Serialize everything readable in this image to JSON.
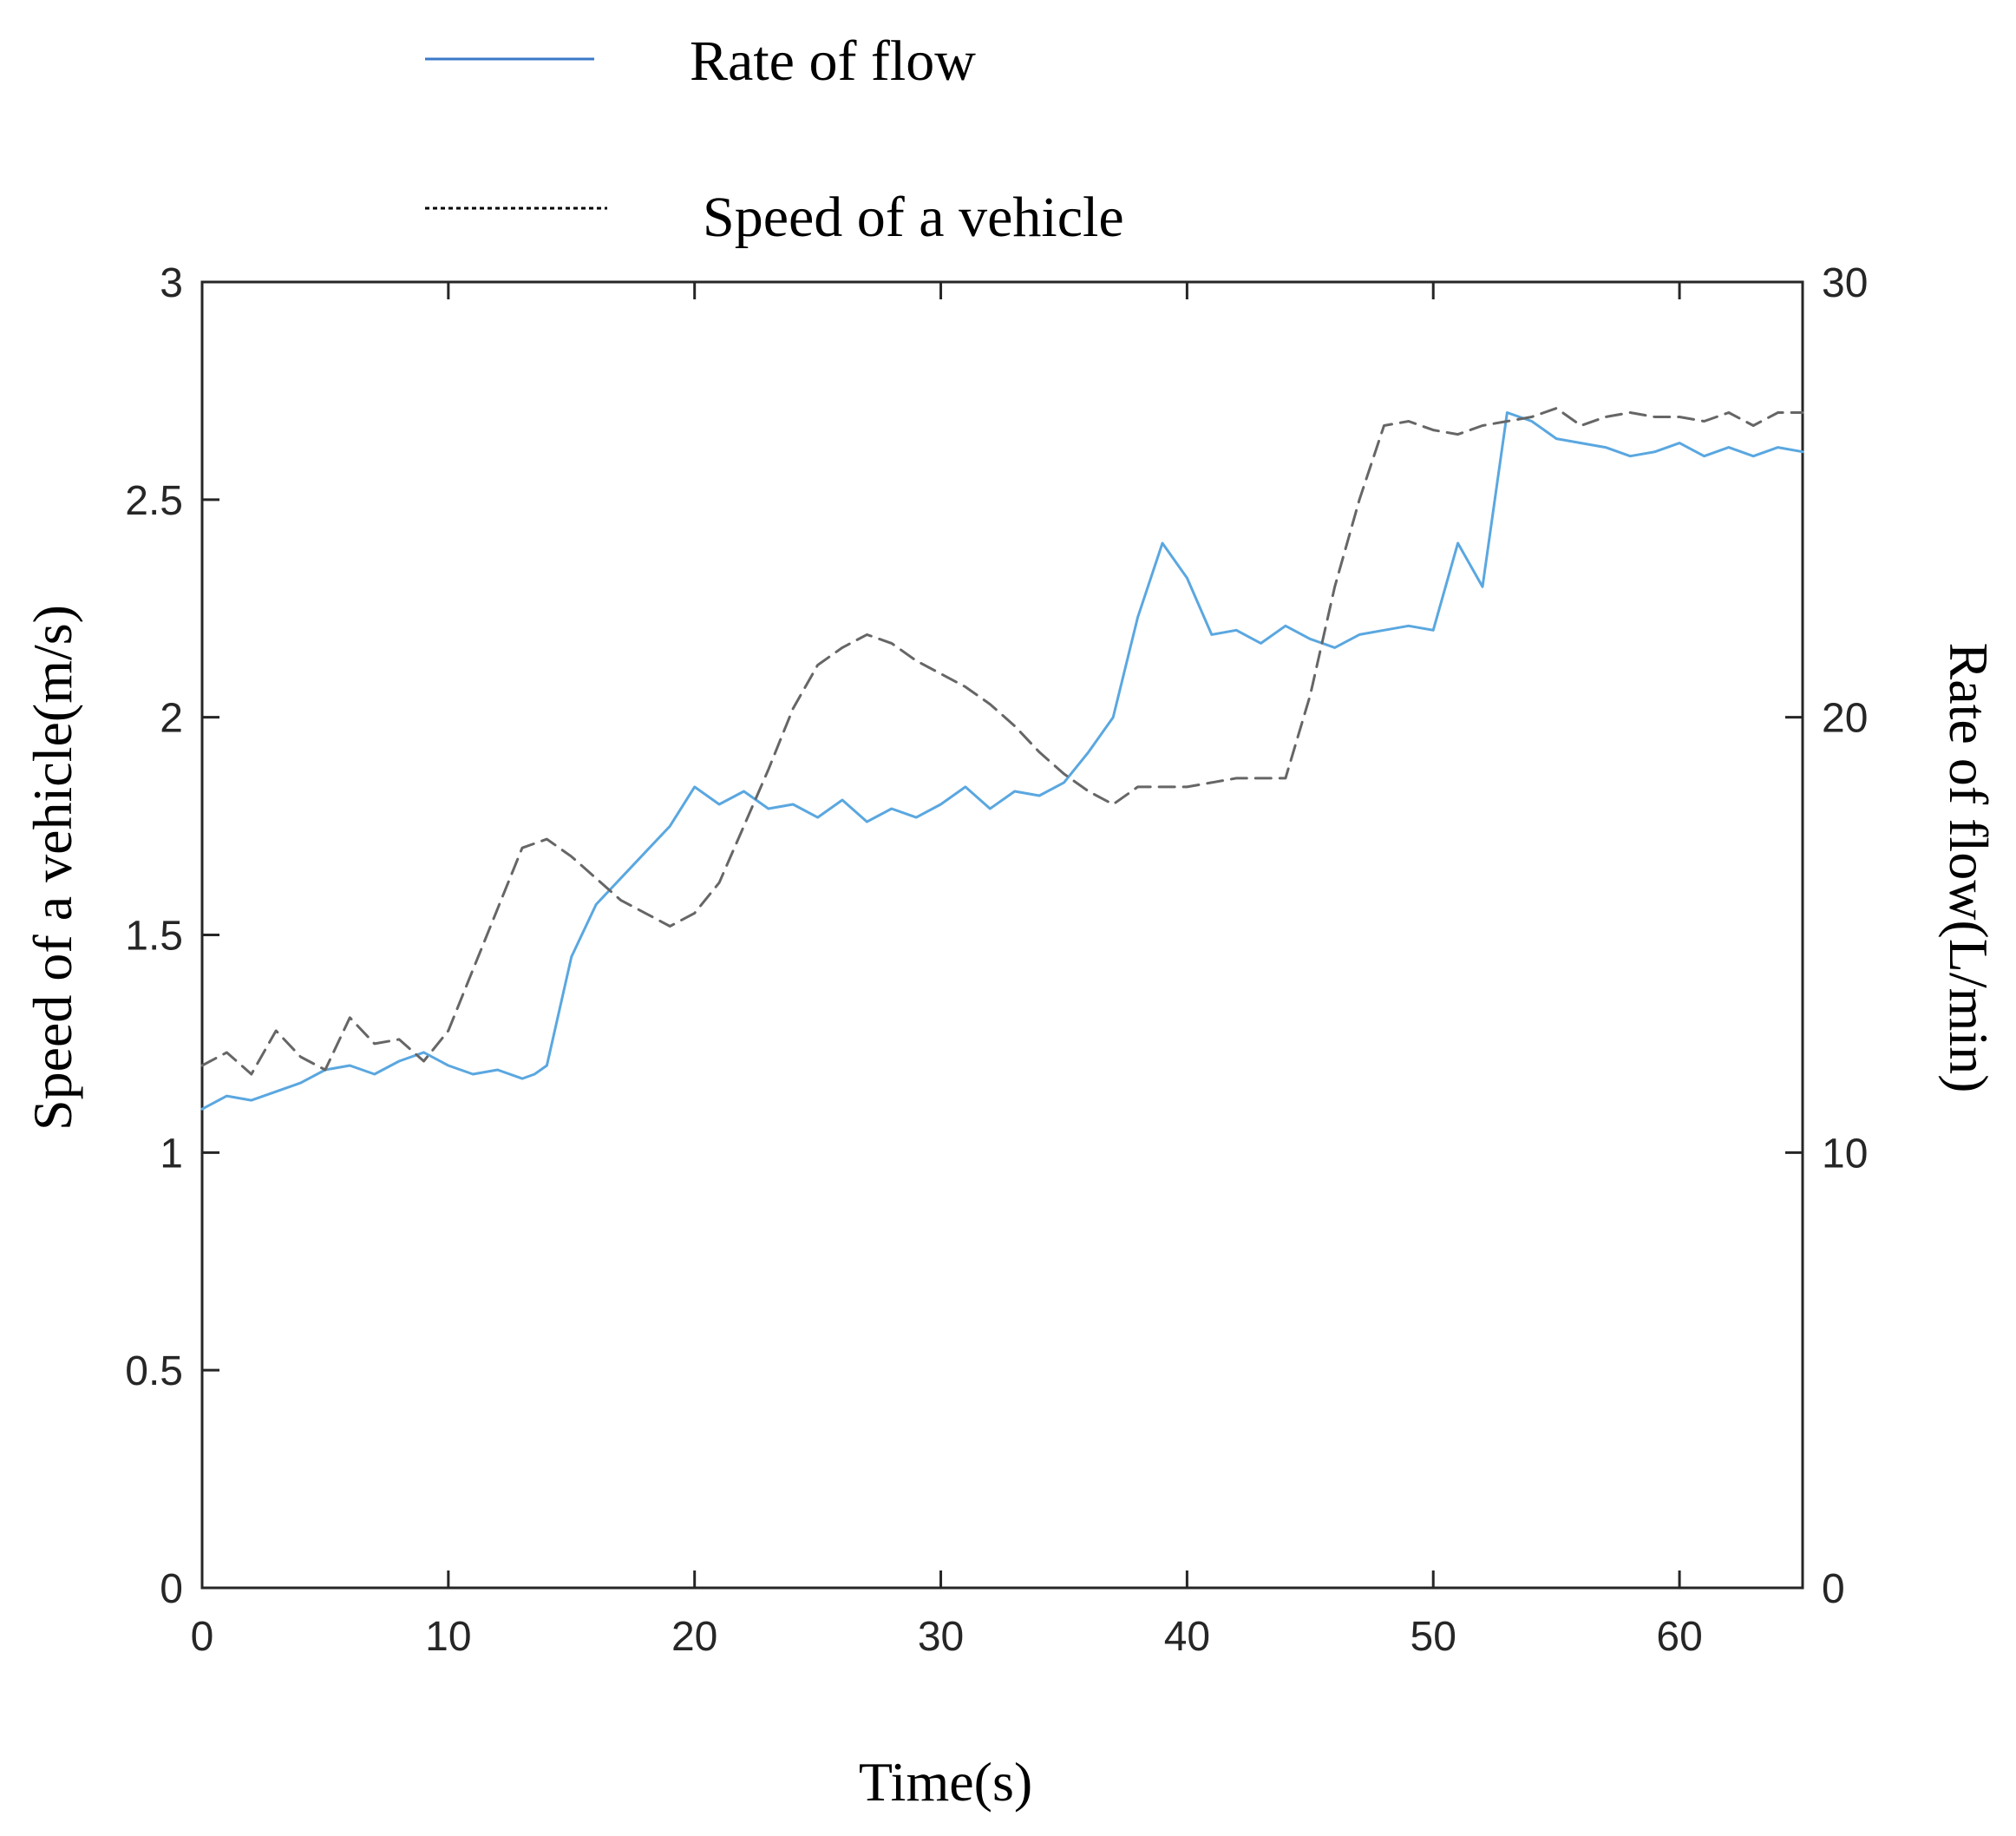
{
  "chart_data": {
    "type": "line",
    "title": "",
    "xlabel": "Time(s)",
    "ylabel_left": "Speed of a vehicle(m/s)",
    "ylabel_right": "Rate of flow(L/min)",
    "xlim": [
      0,
      65
    ],
    "ylim_left": [
      0,
      3
    ],
    "ylim_right": [
      0,
      30
    ],
    "x_ticks": [
      "0",
      "10",
      "20",
      "30",
      "40",
      "50",
      "60"
    ],
    "y_left_ticks": [
      "0",
      "0.5",
      "1",
      "1.5",
      "2",
      "2.5",
      "3"
    ],
    "y_right_ticks": [
      "0",
      "10",
      "20",
      "30"
    ],
    "grid": false,
    "legend_position": "top",
    "series": [
      {
        "name": "Rate of flow",
        "axis": "right",
        "style": "solid",
        "color": "#5aa7e0",
        "legend_color": "#3a78c8",
        "x": [
          0,
          1,
          2,
          3,
          4,
          5,
          6,
          7,
          8,
          9,
          10,
          11,
          12,
          13,
          13.5,
          14,
          15,
          16,
          17,
          18,
          19,
          20,
          21,
          22,
          23,
          24,
          25,
          26,
          27,
          28,
          29,
          30,
          31,
          32,
          33,
          34,
          35,
          36,
          37,
          38,
          39,
          40,
          41,
          42,
          43,
          44,
          45,
          46,
          47,
          48,
          49,
          50,
          51,
          52,
          53,
          54,
          55,
          56,
          57,
          58,
          59,
          60,
          61,
          62,
          63,
          64,
          65
        ],
        "values": [
          11.0,
          11.3,
          11.2,
          11.4,
          11.6,
          11.9,
          12.0,
          11.8,
          12.1,
          12.3,
          12.0,
          11.8,
          11.9,
          11.7,
          11.8,
          12.0,
          14.5,
          15.7,
          16.3,
          16.9,
          17.5,
          18.4,
          18.0,
          18.3,
          17.9,
          18.0,
          17.7,
          18.1,
          17.6,
          17.9,
          17.7,
          18.0,
          18.4,
          17.9,
          18.3,
          18.2,
          18.5,
          19.2,
          20.0,
          22.3,
          24.0,
          23.2,
          21.9,
          22.0,
          21.7,
          22.1,
          21.8,
          21.6,
          21.9,
          22.0,
          22.1,
          22.0,
          24.0,
          23.0,
          27.0,
          26.8,
          26.4,
          26.3,
          26.2,
          26.0,
          26.1,
          26.3,
          26.0,
          26.2,
          26.0,
          26.2,
          26.1
        ]
      },
      {
        "name": "Speed of a vehicle",
        "axis": "left",
        "style": "dashed",
        "color": "#666666",
        "legend_color": "#000000",
        "x": [
          0,
          1,
          2,
          3,
          4,
          5,
          6,
          7,
          8,
          9,
          10,
          11,
          12,
          13,
          14,
          15,
          16,
          17,
          18,
          19,
          20,
          21,
          22,
          23,
          24,
          25,
          26,
          27,
          28,
          29,
          30,
          31,
          32,
          33,
          34,
          35,
          36,
          37,
          38,
          39,
          40,
          41,
          42,
          43,
          44,
          45,
          46,
          47,
          48,
          49,
          50,
          51,
          52,
          53,
          54,
          55,
          56,
          57,
          58,
          59,
          60,
          61,
          62,
          63,
          64,
          65
        ],
        "values": [
          1.2,
          1.23,
          1.18,
          1.28,
          1.22,
          1.19,
          1.31,
          1.25,
          1.26,
          1.21,
          1.28,
          1.42,
          1.56,
          1.7,
          1.72,
          1.68,
          1.63,
          1.58,
          1.55,
          1.52,
          1.55,
          1.62,
          1.75,
          1.88,
          2.02,
          2.12,
          2.16,
          2.19,
          2.17,
          2.13,
          2.1,
          2.07,
          2.03,
          1.98,
          1.92,
          1.87,
          1.83,
          1.8,
          1.84,
          1.84,
          1.84,
          1.85,
          1.86,
          1.86,
          1.86,
          2.05,
          2.3,
          2.5,
          2.67,
          2.68,
          2.66,
          2.65,
          2.67,
          2.68,
          2.69,
          2.71,
          2.67,
          2.69,
          2.7,
          2.69,
          2.69,
          2.68,
          2.7,
          2.67,
          2.7,
          2.7
        ]
      }
    ]
  }
}
